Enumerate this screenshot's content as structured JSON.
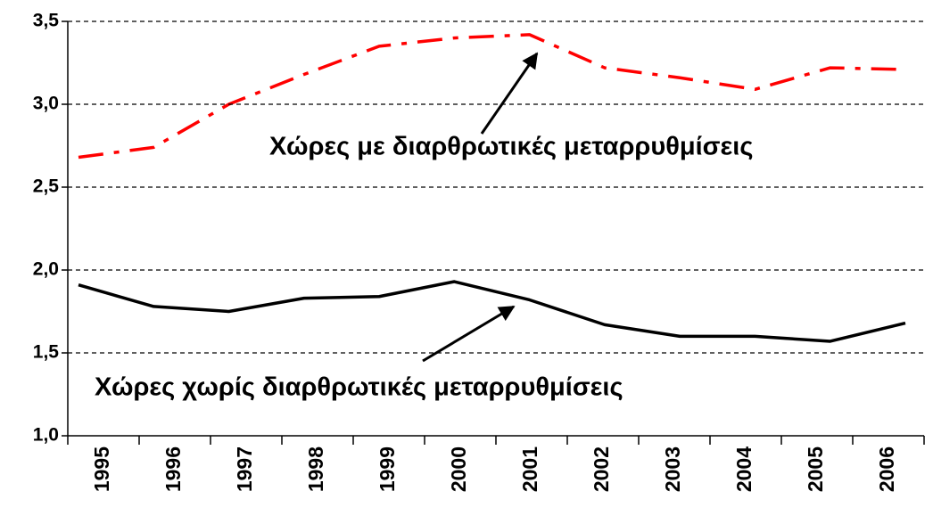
{
  "chart_data": {
    "type": "line",
    "categories": [
      "1995",
      "1996",
      "1997",
      "1998",
      "1999",
      "2000",
      "2001",
      "2002",
      "2003",
      "2004",
      "2005",
      "2006"
    ],
    "series": [
      {
        "name": "Χώρες με διαρθρωτικές μεταρρυθμίσεις",
        "color": "#ff0000",
        "dash": "dashdot",
        "values": [
          2.68,
          2.74,
          3.0,
          3.18,
          3.35,
          3.4,
          3.42,
          3.22,
          3.16,
          3.09,
          3.22,
          3.21
        ]
      },
      {
        "name": "Χώρες χωρίς διαρθρωτικές μεταρρυθμίσεις",
        "color": "#000000",
        "dash": "solid",
        "values": [
          1.91,
          1.78,
          1.75,
          1.83,
          1.84,
          1.93,
          1.82,
          1.67,
          1.6,
          1.6,
          1.57,
          1.68
        ]
      }
    ],
    "ylim": [
      1.0,
      3.5
    ],
    "yticks": [
      {
        "value": 1.0,
        "label": "1,0"
      },
      {
        "value": 1.5,
        "label": "1,5"
      },
      {
        "value": 2.0,
        "label": "2,0"
      },
      {
        "value": 2.5,
        "label": "2,5"
      },
      {
        "value": 3.0,
        "label": "3,0"
      },
      {
        "value": 3.5,
        "label": "3,5"
      }
    ],
    "grid": true
  }
}
